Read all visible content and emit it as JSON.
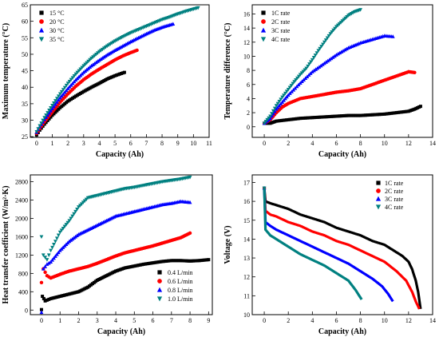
{
  "chart_data": [
    {
      "type": "scatter",
      "xlabel": "Capacity (Ah)",
      "ylabel": "Maximum temperature (°C)",
      "xlim": [
        -0.4,
        11
      ],
      "ylim": [
        24.8,
        65
      ],
      "xticks": [
        0,
        1,
        2,
        3,
        4,
        5,
        6,
        7,
        8,
        9,
        10,
        11
      ],
      "yticks": [
        25,
        30,
        35,
        40,
        45,
        50,
        55,
        60,
        65
      ],
      "legend": "top-left",
      "series": [
        {
          "name": "15 °C",
          "color": "#000000",
          "marker": "square",
          "x": [
            0,
            0.2,
            0.5,
            1,
            1.5,
            2,
            2.5,
            3,
            3.5,
            4,
            4.5,
            5,
            5.6
          ],
          "y": [
            25.5,
            27,
            28.8,
            31.5,
            33.8,
            35.8,
            37.3,
            38.7,
            40,
            41.2,
            42.5,
            43.5,
            44.5
          ]
        },
        {
          "name": "20 °C",
          "color": "#ff0000",
          "marker": "circle",
          "x": [
            0,
            0.2,
            0.5,
            1,
            1.5,
            2,
            2.5,
            3,
            3.5,
            4,
            4.5,
            5,
            5.5,
            6,
            6.4
          ],
          "y": [
            26,
            27.5,
            29.5,
            32.5,
            35.5,
            38,
            40.3,
            42.3,
            44,
            45.5,
            46.9,
            48.3,
            49.5,
            50.5,
            51.2
          ]
        },
        {
          "name": "30 °C",
          "color": "#0000ff",
          "marker": "triangle-up",
          "x": [
            0,
            0.2,
            0.5,
            1,
            1.5,
            2,
            2.5,
            3,
            3.5,
            4,
            4.5,
            5,
            5.5,
            6,
            6.5,
            7,
            7.5,
            8,
            8.7
          ],
          "y": [
            26.3,
            28,
            30.2,
            33.5,
            36.8,
            39.6,
            42.2,
            44.5,
            46.5,
            48.2,
            49.8,
            51.2,
            52.5,
            53.8,
            55,
            56.2,
            57.3,
            58.2,
            59.2
          ]
        },
        {
          "name": "35 °C",
          "color": "#008080",
          "marker": "triangle-down",
          "x": [
            0,
            0.2,
            0.5,
            1,
            1.5,
            2,
            2.5,
            3,
            3.5,
            4,
            4.5,
            5,
            5.5,
            6,
            6.5,
            7,
            7.5,
            8,
            8.5,
            9,
            9.5,
            10,
            10.3
          ],
          "y": [
            26.5,
            28.3,
            30.8,
            34.5,
            38,
            41.2,
            44,
            46.5,
            48.8,
            50.8,
            52.5,
            54,
            55.3,
            56.5,
            57.5,
            58.5,
            59.5,
            60.5,
            61.3,
            62.2,
            63,
            63.7,
            64.1
          ]
        }
      ]
    },
    {
      "type": "scatter",
      "xlabel": "Capacity (Ah)",
      "ylabel": "Temperature difference (°C)",
      "xlim": [
        -1,
        14
      ],
      "ylim": [
        -1.5,
        17.3
      ],
      "xticks": [
        0,
        2,
        4,
        6,
        8,
        10,
        12,
        14
      ],
      "yticks": [
        0,
        2,
        4,
        6,
        8,
        10,
        12,
        14,
        16
      ],
      "legend": "top-left",
      "series": [
        {
          "name": "1C rate",
          "color": "#000000",
          "marker": "square",
          "x": [
            0,
            0.5,
            1,
            2,
            3,
            4,
            5,
            6,
            7,
            8,
            9,
            10,
            11,
            12,
            12.5,
            13
          ],
          "y": [
            0.5,
            0.5,
            0.8,
            1,
            1.2,
            1.3,
            1.4,
            1.5,
            1.6,
            1.6,
            1.7,
            1.8,
            2,
            2.2,
            2.5,
            2.9
          ]
        },
        {
          "name": "2C rate",
          "color": "#ff0000",
          "marker": "circle",
          "x": [
            0,
            0.5,
            1,
            1.5,
            2,
            3,
            4,
            5,
            6,
            7,
            8,
            9,
            10,
            11,
            12,
            12.5
          ],
          "y": [
            0.5,
            1,
            2,
            2.8,
            3.3,
            4,
            4.3,
            4.6,
            4.9,
            5.1,
            5.4,
            6,
            6.6,
            7.2,
            7.8,
            7.7
          ]
        },
        {
          "name": "3C rate",
          "color": "#0000ff",
          "marker": "triangle-up",
          "x": [
            0,
            0.5,
            1,
            1.5,
            2,
            3,
            4,
            5,
            6,
            7,
            8,
            9,
            10,
            10.7
          ],
          "y": [
            0.5,
            1.2,
            2.5,
            3.5,
            4.5,
            6.2,
            7.8,
            9,
            10.2,
            11.2,
            11.9,
            12.4,
            12.9,
            12.8
          ]
        },
        {
          "name": "4C rate",
          "color": "#008080",
          "marker": "triangle-down",
          "x": [
            0,
            0.5,
            1,
            1.5,
            2,
            2.5,
            3,
            3.5,
            4,
            4.5,
            5,
            5.5,
            6,
            6.5,
            7,
            7.5,
            8
          ],
          "y": [
            0.5,
            1.5,
            3,
            4.2,
            5.3,
            6.4,
            7.4,
            8.3,
            9.5,
            10.8,
            12,
            13.2,
            14.2,
            15,
            15.8,
            16.3,
            16.6
          ]
        }
      ]
    },
    {
      "type": "scatter",
      "xlabel": "Capacity (Ah)",
      "ylabel": "Heat transfer coefficient (W/m²·K)",
      "xlim": [
        -0.6,
        9.2
      ],
      "ylim": [
        -100,
        2950
      ],
      "xticks": [
        0,
        1,
        2,
        3,
        4,
        5,
        6,
        7,
        8,
        9
      ],
      "yticks": [
        0,
        400,
        800,
        1200,
        1600,
        2000,
        2400,
        2800
      ],
      "legend": "bottom-right",
      "series": [
        {
          "name": "0.4 L/min",
          "color": "#000000",
          "marker": "square",
          "x": [
            0,
            0.05,
            0.2,
            0.5,
            1,
            1.5,
            2,
            2.5,
            3,
            3.5,
            4,
            4.5,
            5,
            5.5,
            6,
            6.5,
            7,
            7.5,
            8,
            8.5,
            9
          ],
          "y": [
            10,
            300,
            200,
            250,
            300,
            350,
            400,
            500,
            650,
            750,
            850,
            920,
            960,
            1000,
            1030,
            1060,
            1080,
            1080,
            1070,
            1080,
            1100
          ]
        },
        {
          "name": "0.6 L/min",
          "color": "#ff0000",
          "marker": "circle",
          "x": [
            0,
            0.1,
            0.3,
            0.5,
            1,
            1.5,
            2,
            2.5,
            3,
            3.5,
            4,
            4.5,
            5,
            5.5,
            6,
            6.5,
            7,
            7.5,
            8
          ],
          "y": [
            600,
            900,
            750,
            700,
            780,
            850,
            900,
            950,
            1020,
            1100,
            1180,
            1250,
            1300,
            1350,
            1400,
            1460,
            1520,
            1580,
            1680
          ]
        },
        {
          "name": "0.8 L/min",
          "color": "#0000ff",
          "marker": "triangle-up",
          "x": [
            0,
            0.1,
            0.3,
            0.5,
            1,
            1.5,
            2,
            2.5,
            3,
            3.5,
            4,
            4.5,
            5,
            5.5,
            6,
            6.5,
            7,
            7.5,
            8
          ],
          "y": [
            -50,
            900,
            1000,
            1050,
            1300,
            1500,
            1650,
            1750,
            1850,
            1950,
            2050,
            2100,
            2150,
            2200,
            2250,
            2300,
            2330,
            2370,
            2350
          ]
        },
        {
          "name": "1.0 L/min",
          "color": "#008080",
          "marker": "triangle-down",
          "x": [
            0,
            0.1,
            0.3,
            0.5,
            1,
            1.5,
            2,
            2.5,
            3,
            3.5,
            4,
            4.5,
            5,
            5.5,
            6,
            6.5,
            7,
            7.5,
            8
          ],
          "y": [
            1600,
            1200,
            1100,
            1300,
            1700,
            1950,
            2250,
            2450,
            2500,
            2550,
            2600,
            2650,
            2680,
            2720,
            2760,
            2800,
            2830,
            2860,
            2900
          ]
        }
      ]
    },
    {
      "type": "line",
      "xlabel": "Capacity (Ah)",
      "ylabel": "Voltage (V)",
      "xlim": [
        -1,
        14
      ],
      "ylim": [
        10,
        17.4
      ],
      "xticks": [
        0,
        2,
        4,
        6,
        8,
        10,
        12,
        14
      ],
      "yticks": [
        10,
        11,
        12,
        13,
        14,
        15,
        16,
        17
      ],
      "legend": "top-right",
      "series": [
        {
          "name": "1C rate",
          "color": "#000000",
          "marker": "square",
          "x": [
            0,
            0.1,
            0.5,
            1,
            2,
            3,
            4,
            5,
            6,
            7,
            8,
            9,
            10,
            11,
            11.5,
            12,
            12.3,
            12.6,
            12.8,
            13
          ],
          "y": [
            16.7,
            16.0,
            15.9,
            15.8,
            15.6,
            15.3,
            15.1,
            14.9,
            14.6,
            14.4,
            14.2,
            13.9,
            13.7,
            13.3,
            13.1,
            12.8,
            12.4,
            11.8,
            11.2,
            10.3
          ]
        },
        {
          "name": "2C rate",
          "color": "#ff0000",
          "marker": "circle",
          "x": [
            0,
            0.1,
            0.5,
            1,
            2,
            3,
            4,
            5,
            6,
            7,
            8,
            9,
            10,
            11,
            11.8,
            12.3,
            12.6,
            12.9
          ],
          "y": [
            16.7,
            15.5,
            15.3,
            15.2,
            14.9,
            14.7,
            14.4,
            14.2,
            13.9,
            13.7,
            13.4,
            13.1,
            12.8,
            12.3,
            11.8,
            11.2,
            10.7,
            10.3
          ]
        },
        {
          "name": "3C rate",
          "color": "#0000ff",
          "marker": "triangle-up",
          "x": [
            0,
            0.1,
            0.5,
            1,
            2,
            3,
            4,
            5,
            6,
            7,
            8,
            9,
            9.8,
            10.3,
            10.7
          ],
          "y": [
            16.7,
            14.9,
            14.7,
            14.5,
            14.2,
            13.9,
            13.6,
            13.3,
            13.0,
            12.7,
            12.3,
            11.9,
            11.5,
            11.1,
            10.7
          ]
        },
        {
          "name": "4C rate",
          "color": "#008080",
          "marker": "triangle-down",
          "x": [
            0,
            0.1,
            0.5,
            1,
            2,
            3,
            4,
            5,
            6,
            7,
            7.6,
            8.1
          ],
          "y": [
            16.7,
            14.5,
            14.2,
            14.0,
            13.6,
            13.2,
            12.9,
            12.6,
            12.2,
            11.8,
            11.3,
            10.8
          ]
        }
      ]
    }
  ]
}
